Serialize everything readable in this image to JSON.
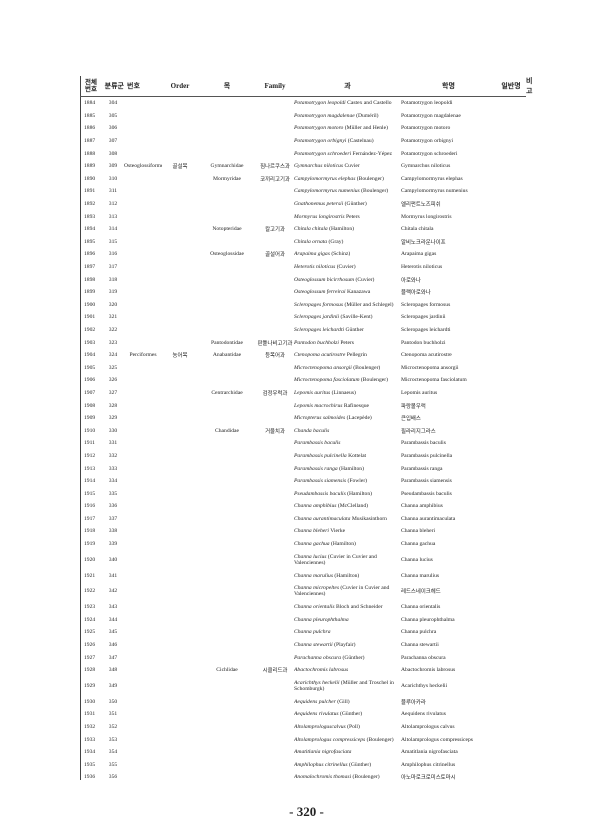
{
  "header": {
    "total_no": "전체\n번호",
    "group": "분류군",
    "no": "번호",
    "order": "Order",
    "mok": "목",
    "family": "Family",
    "gwa": "과",
    "sci": "학명",
    "common": "일반명",
    "note": "비고"
  },
  "rows": [
    [
      "1884",
      "304",
      "",
      "",
      "",
      "",
      "Potamotrygon leopoldi",
      "Castex and Castello",
      "Potamotrygon leopoldi"
    ],
    [
      "1885",
      "305",
      "",
      "",
      "",
      "",
      "Potamotrygon magdalenae",
      "(Duméril)",
      "Potamotrygon magdalenae"
    ],
    [
      "1886",
      "306",
      "",
      "",
      "",
      "",
      "Potamotrygon motoro",
      "(Müller and Henle)",
      "Potamotrygon motoro"
    ],
    [
      "1887",
      "307",
      "",
      "",
      "",
      "",
      "Potamotrygon orbignyi",
      "(Castelnau)",
      "Potamotrygon orbignyi"
    ],
    [
      "1888",
      "308",
      "",
      "",
      "",
      "",
      "Potamotrygon schroederi",
      "Fernández-Yépez",
      "Potamotrygon schroederi"
    ],
    [
      "1889",
      "309",
      "Osteoglossiformes",
      "골설목",
      "Gymnarchidae",
      "짐나르쿠스과",
      "Gymnarchus niloticus",
      "Cuvier",
      "Gymnarchus niloticus"
    ],
    [
      "1890",
      "310",
      "",
      "",
      "Mormyridae",
      "코끼리고기과",
      "Campylomormyrus elephas",
      "(Boulenger)",
      "Campylomormyrus elephas"
    ],
    [
      "1891",
      "311",
      "",
      "",
      "",
      "",
      "Campylomormyrus numenius",
      "(Boulenger)",
      "Campylomormyrus numenius"
    ],
    [
      "1892",
      "312",
      "",
      "",
      "",
      "",
      "Gnathonemus petersii",
      "(Günther)",
      "엘리펀트노즈피쉬"
    ],
    [
      "1893",
      "313",
      "",
      "",
      "",
      "",
      "Mormyrus longirostris",
      "Peters",
      "Mormyrus longirostris"
    ],
    [
      "1894",
      "314",
      "",
      "",
      "Notopteridae",
      "칼고기과",
      "Chitala chitala",
      "(Hamilton)",
      "Chitala chitala"
    ],
    [
      "1895",
      "315",
      "",
      "",
      "",
      "",
      "Chitala ornata",
      "(Gray)",
      "알비노크라운나이프"
    ],
    [
      "1896",
      "316",
      "",
      "",
      "Osteoglossidae",
      "골설어과",
      "Arapaima gigas",
      "(Schinz)",
      "Arapaima gigas"
    ],
    [
      "1897",
      "317",
      "",
      "",
      "",
      "",
      "Heterotis niloticus",
      "(Cuvier)",
      "Heterotis niloticus"
    ],
    [
      "1898",
      "318",
      "",
      "",
      "",
      "",
      "Osteoglossum bicirrhosum",
      "(Cuvier)",
      "아로와나"
    ],
    [
      "1899",
      "319",
      "",
      "",
      "",
      "",
      "Osteoglossum ferreirai",
      "Kanazawa",
      "블랙아로와나"
    ],
    [
      "1900",
      "320",
      "",
      "",
      "",
      "",
      "Scleropages formosus",
      "(Müller and Schlegel)",
      "Scleropages formosus"
    ],
    [
      "1901",
      "321",
      "",
      "",
      "",
      "",
      "Scleropages jardinii",
      "(Saville-Kent)",
      "Scleropages jardinii"
    ],
    [
      "1902",
      "322",
      "",
      "",
      "",
      "",
      "Scleropages leichardti",
      "Günther",
      "Scleropages leichardti"
    ],
    [
      "1903",
      "323",
      "",
      "",
      "Pantodontidae",
      "판퉅나비고기과",
      "Pantodon buchholzi",
      "Peters",
      "Pantodon buchholzi"
    ],
    [
      "1904",
      "324",
      "Perciformes",
      "농어목",
      "Anabantidae",
      "등목어과",
      "Ctenopoma acutirostre",
      "Pellegrin",
      "Ctenopoma acutirostre"
    ],
    [
      "1905",
      "325",
      "",
      "",
      "",
      "",
      "Microctenopoma ansorgii",
      "(Boulenger)",
      "Microctenopoma ansorgii"
    ],
    [
      "1906",
      "326",
      "",
      "",
      "",
      "",
      "Microctenopoma fasciolatum",
      "(Boulenger)",
      "Microctenopoma fasciolatum"
    ],
    [
      "1907",
      "327",
      "",
      "",
      "Centrarchidae",
      "검정우럭과",
      "Lepomis auritus",
      "(Linnaeus)",
      "Lepomis auritus"
    ],
    [
      "1908",
      "328",
      "",
      "",
      "",
      "",
      "Lepomis macrochirus",
      "Rafinesque",
      "파랑볼우럭"
    ],
    [
      "1909",
      "329",
      "",
      "",
      "",
      "",
      "Micropterus salmoides",
      "(Lacepède)",
      "큰입배스"
    ],
    [
      "1910",
      "330",
      "",
      "",
      "Chandidae",
      "거울치과",
      "Chanda baculis",
      "",
      "필라리지그라스"
    ],
    [
      "1911",
      "331",
      "",
      "",
      "",
      "",
      "Parambassis baculis",
      "",
      "Parambassis baculis"
    ],
    [
      "1912",
      "332",
      "",
      "",
      "",
      "",
      "Parambassis pulcinella",
      "Kottelat",
      "Parambassis pulcinella"
    ],
    [
      "1913",
      "333",
      "",
      "",
      "",
      "",
      "Parambassis ranga",
      "(Hamilton)",
      "Parambassis ranga"
    ],
    [
      "1914",
      "334",
      "",
      "",
      "",
      "",
      "Parambassis siamensis",
      "(Fowler)",
      "Parambassis siamensis"
    ],
    [
      "1915",
      "335",
      "",
      "",
      "",
      "",
      "Pseudambassis baculis",
      "(Hamilton)",
      "Pseudambassis baculis"
    ],
    [
      "1916",
      "336",
      "",
      "",
      "",
      "",
      "Channa amphibius",
      "(McClelland)",
      "Channa amphibius"
    ],
    [
      "1917",
      "337",
      "",
      "",
      "",
      "",
      "Channa aurantimaculata",
      "Musikasinthorn",
      "Channa aurantimaculata"
    ],
    [
      "1918",
      "338",
      "",
      "",
      "",
      "",
      "Channa bleheri",
      "Vierke",
      "Channa bleheri"
    ],
    [
      "1919",
      "339",
      "",
      "",
      "",
      "",
      "Channa gachua",
      "(Hamilton)",
      "Channa gachua"
    ],
    [
      "1920",
      "340",
      "",
      "",
      "",
      "",
      "Channa lucius",
      "(Cuvier in Cuvier and Valenciennes)",
      "Channa lucius"
    ],
    [
      "1921",
      "341",
      "",
      "",
      "",
      "",
      "Channa marulius",
      "(Hamilton)",
      "Channa marulius"
    ],
    [
      "1922",
      "342",
      "",
      "",
      "",
      "",
      "Channa micropeltes",
      "(Cuvier in Cuvier and Valenciennes)",
      "레드스네이크헤드"
    ],
    [
      "1923",
      "343",
      "",
      "",
      "",
      "",
      "Channa orientalis",
      "Bloch and Schneider",
      "Channa orientalis"
    ],
    [
      "1924",
      "344",
      "",
      "",
      "",
      "",
      "Channa pleurophthalma",
      "",
      "Channa pleurophthalma"
    ],
    [
      "1925",
      "345",
      "",
      "",
      "",
      "",
      "Channa pulchra",
      "",
      "Channa pulchra"
    ],
    [
      "1926",
      "346",
      "",
      "",
      "",
      "",
      "Channa stewartii",
      "(Playfair)",
      "Channa stewartii"
    ],
    [
      "1927",
      "347",
      "",
      "",
      "",
      "",
      "Parachanna obscura",
      "(Günther)",
      "Parachanna obscura"
    ],
    [
      "1928",
      "348",
      "",
      "",
      "Cichlidae",
      "시클리드과",
      "Abactochromis labrosus",
      "",
      "Abactochromis labrosus"
    ],
    [
      "1929",
      "349",
      "",
      "",
      "",
      "",
      "Acarichthys heckelii",
      "(Müller and Troschel in Schomburgk)",
      "Acarichthys heckelii"
    ],
    [
      "1930",
      "350",
      "",
      "",
      "",
      "",
      "Aequidens pulcher",
      "(Gill)",
      "블루아카라"
    ],
    [
      "1931",
      "351",
      "",
      "",
      "",
      "",
      "Aequidens rivulatus",
      "(Günther)",
      "Aequidens rivulatus"
    ],
    [
      "1932",
      "352",
      "",
      "",
      "",
      "",
      "Altolamprologuscalvus",
      "(Poll)",
      "Altolamprologus calvus"
    ],
    [
      "1933",
      "353",
      "",
      "",
      "",
      "",
      "Altolamprologus compressiceps",
      "(Boulenger)",
      "Altolamprologus compressiceps"
    ],
    [
      "1934",
      "354",
      "",
      "",
      "",
      "",
      "Amatitlania nigrofasciata",
      "",
      "Amatitlania nigrofasciata"
    ],
    [
      "1935",
      "355",
      "",
      "",
      "",
      "",
      "Amphilophus citrinellus",
      "(Günther)",
      "Amphilophus citrinellus"
    ],
    [
      "1936",
      "356",
      "",
      "",
      "",
      "",
      "Anomalochromis thomasi",
      "(Boulenger)",
      "아노마로크로미스토마시"
    ]
  ],
  "page_number": "- 320 -"
}
